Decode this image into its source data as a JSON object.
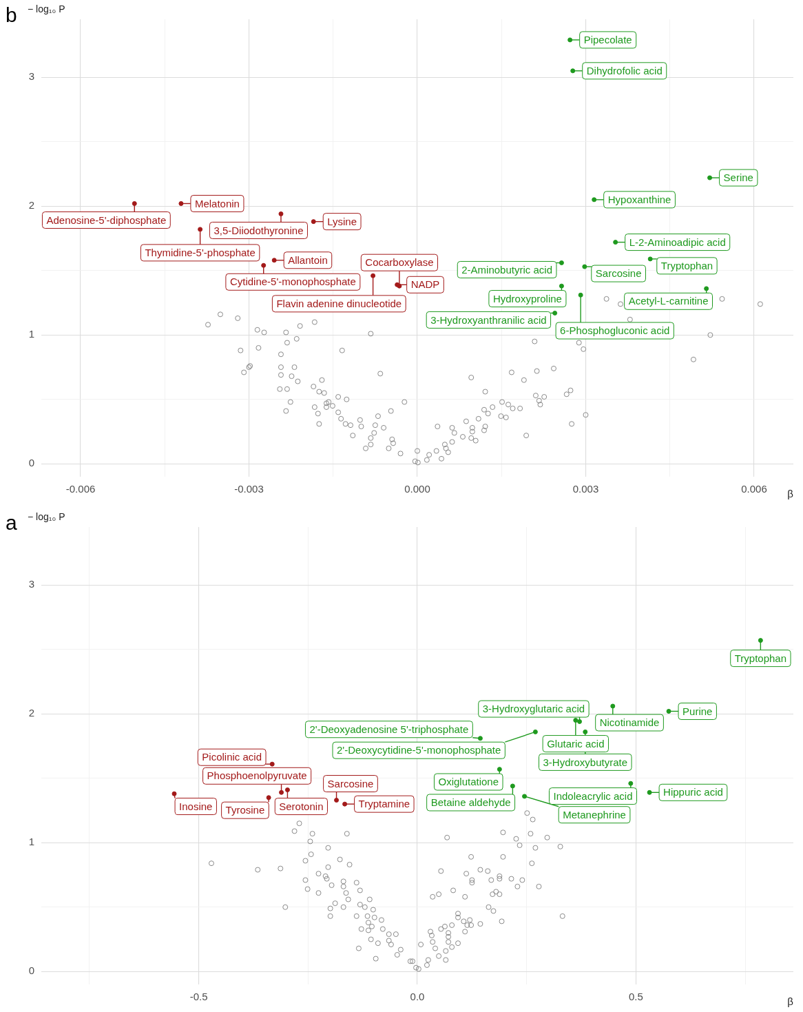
{
  "chart_data": [
    {
      "type": "scatter",
      "title": "a",
      "xlabel": "β",
      "ylabel": "− log₁₀ P",
      "marker": "circle",
      "grid": true,
      "xlim": [
        -0.86,
        0.86
      ],
      "ylim": [
        -0.1,
        3.45
      ],
      "xticks": [
        {
          "value": -0.75,
          "label": null
        },
        -0.5,
        {
          "value": -0.25,
          "label": null
        },
        {
          "value": 0,
          "label": "0.0"
        },
        {
          "value": 0.25,
          "label": null
        },
        0.5,
        {
          "value": 0.75,
          "label": null
        }
      ],
      "yticks": [
        0,
        {
          "value": 0.5,
          "label": null
        },
        1,
        {
          "value": 1.5,
          "label": null
        },
        2,
        {
          "value": 2.5,
          "label": null
        },
        3
      ],
      "series": [
        {
          "color": "#8a8a8a",
          "x": [
            0.327,
            0.297,
            0.332,
            0.251,
            0.264,
            0.259,
            0.27,
            0.262,
            0.278,
            0.234,
            0.226,
            0.196,
            0.24,
            0.229,
            0.215,
            0.196,
            0.188,
            0.188,
            0.169,
            0.18,
            0.188,
            0.172,
            0.161,
            0.144,
            0.123,
            0.125,
            0.125,
            0.112,
            0.109,
            0.082,
            0.068,
            0.054,
            0.049,
            0.035,
            0.163,
            0.174,
            0.193,
            0.144,
            0.12,
            0.123,
            0.106,
            0.114,
            0.093,
            0.093,
            0.109,
            0.079,
            0.063,
            0.054,
            0.071,
            0.071,
            0.03,
            0.033,
            0.071,
            0.093,
            0.079,
            0.065,
            0.035,
            0.008,
            0.041,
            0.049,
            0.065,
            0.025,
            0.022,
            0.003,
            -0.016,
            -0.011,
            -0.003,
            -0.038,
            -0.046,
            -0.095,
            -0.134,
            -0.049,
            -0.065,
            -0.065,
            -0.06,
            -0.09,
            -0.106,
            -0.079,
            -0.104,
            -0.112,
            -0.128,
            -0.082,
            -0.098,
            -0.112,
            -0.114,
            -0.139,
            -0.199,
            -0.101,
            -0.12,
            -0.131,
            -0.109,
            -0.158,
            -0.169,
            -0.188,
            -0.199,
            -0.302,
            -0.131,
            -0.139,
            -0.163,
            -0.169,
            -0.169,
            -0.196,
            -0.207,
            -0.21,
            -0.226,
            -0.226,
            -0.256,
            -0.251,
            -0.155,
            -0.177,
            -0.204,
            -0.204,
            -0.256,
            -0.243,
            -0.245,
            -0.24,
            -0.161,
            -0.281,
            -0.27,
            -0.313,
            -0.365,
            -0.471
          ],
          "values": [
            0.97,
            1.04,
            0.43,
            1.23,
            1.18,
            1.07,
            0.96,
            0.84,
            0.66,
            0.98,
            1.03,
            1.08,
            0.71,
            0.66,
            0.72,
            0.89,
            0.74,
            0.72,
            0.71,
            0.62,
            0.6,
            0.6,
            0.78,
            0.79,
            0.89,
            0.71,
            0.69,
            0.76,
            0.58,
            0.63,
            1.04,
            0.78,
            0.6,
            0.58,
            0.5,
            0.47,
            0.39,
            0.37,
            0.4,
            0.36,
            0.39,
            0.36,
            0.45,
            0.42,
            0.31,
            0.36,
            0.35,
            0.33,
            0.3,
            0.27,
            0.31,
            0.28,
            0.23,
            0.22,
            0.19,
            0.16,
            0.23,
            0.21,
            0.18,
            0.12,
            0.09,
            0.09,
            0.05,
            0.02,
            0.08,
            0.08,
            0.03,
            0.17,
            0.13,
            0.1,
            0.18,
            0.29,
            0.29,
            0.24,
            0.21,
            0.22,
            0.25,
            0.33,
            0.35,
            0.32,
            0.33,
            0.4,
            0.42,
            0.38,
            0.43,
            0.43,
            0.43,
            0.48,
            0.5,
            0.52,
            0.56,
            0.56,
            0.5,
            0.53,
            0.49,
            0.5,
            0.63,
            0.69,
            0.61,
            0.66,
            0.7,
            0.67,
            0.72,
            0.74,
            0.76,
            0.61,
            0.71,
            0.64,
            0.83,
            0.87,
            0.81,
            0.96,
            0.86,
            0.91,
            1.01,
            1.07,
            1.07,
            1.09,
            1.15,
            0.8,
            0.79,
            0.84
          ]
        },
        {
          "color": "#1f9a1f",
          "x": [
            0.785,
            0.575,
            0.447,
            0.371,
            0.362,
            0.384,
            0.27,
            0.144,
            0.488,
            0.531,
            0.188,
            0.218,
            0.245
          ],
          "values": [
            2.57,
            2.02,
            2.06,
            1.94,
            1.95,
            1.86,
            1.86,
            1.81,
            1.46,
            1.39,
            1.57,
            1.44,
            1.36
          ]
        },
        {
          "color": "#a31a1a",
          "x": [
            -0.297,
            -0.311,
            -0.332,
            -0.185,
            -0.166,
            -0.34,
            -0.556
          ],
          "values": [
            1.41,
            1.39,
            1.61,
            1.33,
            1.3,
            1.35,
            1.38
          ]
        }
      ],
      "annotations": [
        {
          "text": "Tryptophan",
          "x": 0.785,
          "y": 2.57
        },
        {
          "text": "Purine",
          "x": 0.575,
          "y": 2.02
        },
        {
          "text": "Nicotinamide",
          "x": 0.447,
          "y": 2.06
        },
        {
          "text": "3-Hydroxyglutaric acid",
          "x": 0.371,
          "y": 1.94
        },
        {
          "text": "Glutaric acid",
          "x": 0.362,
          "y": 1.95
        },
        {
          "text": "3-Hydroxybutyrate",
          "x": 0.384,
          "y": 1.86
        },
        {
          "text": "2'-Deoxycytidine-5'-monophosphate",
          "x": 0.27,
          "y": 1.86
        },
        {
          "text": "2'-Deoxyadenosine 5'-triphosphate",
          "x": 0.144,
          "y": 1.81
        },
        {
          "text": "Indoleacrylic acid",
          "x": 0.488,
          "y": 1.46
        },
        {
          "text": "Hippuric acid",
          "x": 0.531,
          "y": 1.39
        },
        {
          "text": "Oxiglutatione",
          "x": 0.188,
          "y": 1.57
        },
        {
          "text": "Betaine aldehyde",
          "x": 0.218,
          "y": 1.44
        },
        {
          "text": "Metanephrine",
          "x": 0.245,
          "y": 1.36
        },
        {
          "text": "Serotonin",
          "x": -0.297,
          "y": 1.41
        },
        {
          "text": "Phosphoenolpyruvate",
          "x": -0.311,
          "y": 1.39
        },
        {
          "text": "Picolinic acid",
          "x": -0.332,
          "y": 1.61
        },
        {
          "text": "Sarcosine",
          "x": -0.185,
          "y": 1.33
        },
        {
          "text": "Tryptamine",
          "x": -0.166,
          "y": 1.3
        },
        {
          "text": "Tyrosine",
          "x": -0.34,
          "y": 1.35
        },
        {
          "text": "Inosine",
          "x": -0.556,
          "y": 1.38
        }
      ]
    },
    {
      "type": "scatter",
      "title": "b",
      "xlabel": "β",
      "ylabel": "− log₁₀ P",
      "marker": "circle",
      "grid": true,
      "xlim": [
        -0.0067,
        0.0067
      ],
      "ylim": [
        -0.1,
        3.45
      ],
      "xticks": [
        -0.006,
        {
          "value": -0.0045,
          "label": null
        },
        -0.003,
        {
          "value": -0.0015,
          "label": null
        },
        {
          "value": 0,
          "label": "0.000"
        },
        {
          "value": 0.0015,
          "label": null
        },
        0.003,
        {
          "value": 0.0045,
          "label": null
        },
        0.006
      ],
      "yticks": [
        0,
        {
          "value": 0.5,
          "label": null
        },
        1,
        {
          "value": 1.5,
          "label": null
        },
        2,
        {
          "value": 2.5,
          "label": null
        },
        3
      ],
      "series": [
        {
          "color": "#8a8a8a",
          "x": [
            0.00611,
            0.00543,
            0.00522,
            0.00492,
            0.00379,
            0.00362,
            0.00337,
            0.00288,
            0.00296,
            0.00209,
            0.00243,
            0.00213,
            0.00168,
            0.0019,
            0.00096,
            0.00121,
            0.00273,
            0.00266,
            0.00226,
            0.00211,
            0.00217,
            0.00219,
            0.003,
            0.00275,
            0.00183,
            0.00162,
            0.00151,
            0.0017,
            0.00158,
            0.00149,
            0.00134,
            0.00119,
            0.00126,
            0.00109,
            0.00087,
            0.00194,
            0.00121,
            0.00119,
            0.00098,
            0.00098,
            0.00096,
            0.00104,
            0.00081,
            0.00062,
            0.00066,
            0.00062,
            0.00049,
            0.00051,
            0.00055,
            0.00043,
            0.00036,
            0.00034,
            0.00021,
            0.00017,
            1e-05,
            0.0,
            -4e-05,
            -0.00023,
            -0.00047,
            -0.0007,
            -0.00066,
            -0.00083,
            -0.00045,
            -0.00043,
            -0.00051,
            -0.0003,
            -0.0006,
            -0.00075,
            -0.00077,
            -0.00083,
            -0.00083,
            -0.00092,
            -0.001,
            -0.00102,
            -0.00115,
            -0.00119,
            -0.00128,
            -0.00136,
            -0.00141,
            -0.00126,
            -0.00141,
            -0.00151,
            -0.00158,
            -0.00162,
            -0.00162,
            -0.00183,
            -0.00177,
            -0.00175,
            -0.00166,
            -0.00175,
            -0.00185,
            -0.0017,
            -0.00213,
            -0.00224,
            -0.00243,
            -0.00219,
            -0.00243,
            -0.00232,
            -0.00245,
            -0.00226,
            -0.00234,
            -0.00134,
            -0.00243,
            -0.00232,
            -0.00215,
            -0.00234,
            -0.00273,
            -0.00285,
            -0.00283,
            -0.00315,
            -0.00298,
            -0.003,
            -0.00309,
            -0.00183,
            -0.00209,
            -0.0032,
            -0.00373,
            -0.00351
          ],
          "values": [
            1.24,
            1.28,
            1.0,
            0.81,
            1.12,
            1.24,
            1.28,
            0.94,
            0.89,
            0.95,
            0.74,
            0.72,
            0.71,
            0.65,
            0.67,
            0.56,
            0.57,
            0.54,
            0.52,
            0.53,
            0.49,
            0.46,
            0.38,
            0.31,
            0.43,
            0.46,
            0.48,
            0.43,
            0.36,
            0.37,
            0.44,
            0.42,
            0.39,
            0.35,
            0.33,
            0.22,
            0.29,
            0.26,
            0.28,
            0.25,
            0.2,
            0.18,
            0.21,
            0.28,
            0.24,
            0.17,
            0.15,
            0.12,
            0.09,
            0.04,
            0.29,
            0.1,
            0.07,
            0.03,
            0.01,
            0.1,
            0.02,
            0.48,
            0.41,
            0.37,
            0.7,
            1.01,
            0.19,
            0.16,
            0.12,
            0.08,
            0.28,
            0.3,
            0.24,
            0.2,
            0.15,
            0.12,
            0.29,
            0.34,
            0.22,
            0.3,
            0.31,
            0.35,
            0.4,
            0.5,
            0.52,
            0.45,
            0.48,
            0.47,
            0.44,
            0.44,
            0.39,
            0.31,
            0.55,
            0.56,
            0.6,
            0.65,
            0.64,
            0.68,
            0.69,
            0.75,
            0.75,
            0.58,
            0.58,
            0.48,
            0.41,
            0.88,
            0.85,
            0.94,
            0.97,
            1.02,
            1.02,
            1.04,
            0.9,
            0.88,
            0.76,
            0.75,
            0.71,
            1.1,
            1.07,
            1.13,
            1.08,
            1.16
          ]
        },
        {
          "color": "#1f9a1f",
          "x": [
            0.00272,
            0.00277,
            0.00521,
            0.00315,
            0.00353,
            0.00415,
            0.00298,
            0.00257,
            0.00257,
            0.00515,
            0.00291,
            0.00245
          ],
          "values": [
            3.29,
            3.05,
            2.22,
            2.05,
            1.72,
            1.59,
            1.53,
            1.56,
            1.38,
            1.36,
            1.31,
            1.17
          ]
        },
        {
          "color": "#a31a1a",
          "x": [
            -0.00421,
            -0.00504,
            -0.00243,
            -0.00185,
            -0.00387,
            -0.00255,
            -0.00274,
            -0.00079,
            -0.00036,
            -0.00032
          ],
          "values": [
            2.02,
            2.02,
            1.94,
            1.88,
            1.82,
            1.58,
            1.54,
            1.46,
            1.39,
            1.38
          ]
        }
      ],
      "annotations": [
        {
          "text": "Pipecolate",
          "x": 0.00272,
          "y": 3.29
        },
        {
          "text": "Dihydrofolic acid",
          "x": 0.00277,
          "y": 3.05
        },
        {
          "text": "Serine",
          "x": 0.00521,
          "y": 2.22
        },
        {
          "text": "Hypoxanthine",
          "x": 0.00315,
          "y": 2.05
        },
        {
          "text": "L-2-Aminoadipic acid",
          "x": 0.00353,
          "y": 1.72
        },
        {
          "text": "Tryptophan",
          "x": 0.00415,
          "y": 1.59
        },
        {
          "text": "Sarcosine",
          "x": 0.00298,
          "y": 1.53
        },
        {
          "text": "2-Aminobutyric acid",
          "x": 0.00257,
          "y": 1.56
        },
        {
          "text": "Hydroxyproline",
          "x": 0.00257,
          "y": 1.38
        },
        {
          "text": "Acetyl-L-carnitine",
          "x": 0.00515,
          "y": 1.36
        },
        {
          "text": "6-Phosphogluconic acid",
          "x": 0.00291,
          "y": 1.31
        },
        {
          "text": "3-Hydroxyanthranilic acid",
          "x": 0.00245,
          "y": 1.17
        },
        {
          "text": "Melatonin",
          "x": -0.00421,
          "y": 2.02
        },
        {
          "text": "Adenosine-5'-diphosphate",
          "x": -0.00504,
          "y": 2.02
        },
        {
          "text": "3,5-Diiodothyronine",
          "x": -0.00243,
          "y": 1.94
        },
        {
          "text": "Lysine",
          "x": -0.00185,
          "y": 1.88
        },
        {
          "text": "Thymidine-5'-phosphate",
          "x": -0.00387,
          "y": 1.82
        },
        {
          "text": "Allantoin",
          "x": -0.00255,
          "y": 1.58
        },
        {
          "text": "Cytidine-5'-monophosphate",
          "x": -0.00274,
          "y": 1.54
        },
        {
          "text": "Flavin adenine dinucleotide",
          "x": -0.00079,
          "y": 1.46
        },
        {
          "text": "NADP",
          "x": -0.00036,
          "y": 1.39
        },
        {
          "text": "Cocarboxylase",
          "x": -0.00032,
          "y": 1.38
        }
      ]
    }
  ]
}
